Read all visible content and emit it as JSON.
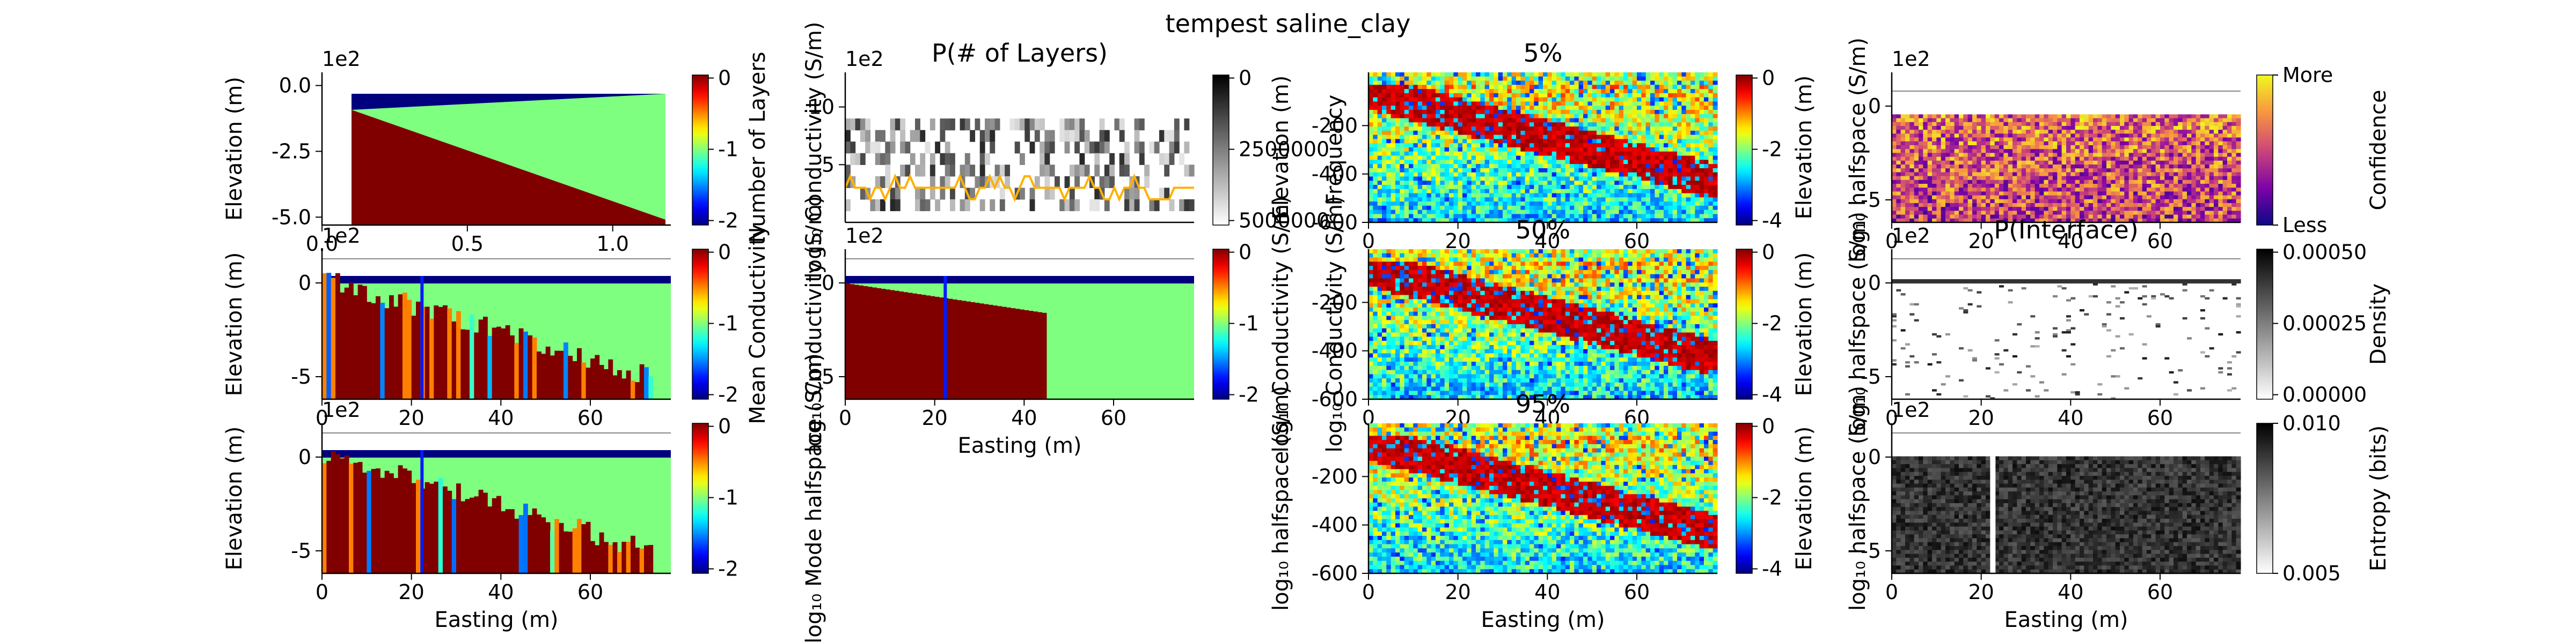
{
  "suptitle": "tempest saline_clay",
  "colors": {
    "clay": "#800000",
    "mid_green": "#7fff7f",
    "top_blue": "#00007f",
    "median_line": "#ffb000",
    "hline": "#888888"
  },
  "panels": [
    {
      "id": "true_model",
      "type": "heatmap",
      "title": "",
      "xlabel": "",
      "ylabel": "Elevation (m)",
      "offset": "1e2",
      "xticks": [
        "0.0",
        "0.5",
        "1.0"
      ],
      "yticks": [
        "0.0",
        "-2.5",
        "-5.0"
      ],
      "colorbar": {
        "label": "log$_{10}$ Conductivity ($\\frac{S}{m}$)",
        "ticks": [
          "0",
          "-1",
          "-2"
        ],
        "cmap": "jet"
      }
    },
    {
      "id": "n_layers",
      "type": "heatmap",
      "title": "P(# of Layers)",
      "xlabel": "",
      "ylabel": "Number of Layers",
      "offset": "1e2",
      "xticks": [],
      "yticks": [
        "5",
        "10"
      ],
      "colorbar": {
        "label": "Frequency",
        "ticks": [
          "0",
          "2500000",
          "5000000"
        ],
        "cmap": "gray_r"
      }
    },
    {
      "id": "p5",
      "type": "heatmap",
      "title": "5%",
      "xlabel": "",
      "ylabel": "Elevation (m)",
      "offset": "",
      "xticks": [
        "0",
        "20",
        "40",
        "60"
      ],
      "yticks": [
        "-200",
        "-400",
        "-600"
      ],
      "colorbar": {
        "label": "log$_{10}$ halfspace ($\\frac{S}{m}$)",
        "ticks": [
          "0",
          "-2",
          "-4"
        ],
        "cmap": "jet"
      }
    },
    {
      "id": "confidence",
      "type": "heatmap",
      "title": "",
      "xlabel": "",
      "ylabel": "Elevation (m)",
      "offset": "1e2",
      "xticks": [
        "0",
        "20",
        "40",
        "60"
      ],
      "yticks": [
        "0",
        "-5"
      ],
      "colorbar": {
        "label": "Confidence",
        "ticks": [
          "More",
          "Less"
        ],
        "cmap": "plasma"
      }
    },
    {
      "id": "mean_model",
      "type": "heatmap",
      "title": "",
      "xlabel": "",
      "ylabel": "Elevation (m)",
      "offset": "1e2",
      "xticks": [
        "0",
        "20",
        "40",
        "60"
      ],
      "yticks": [
        "0",
        "-5"
      ],
      "colorbar": {
        "label": "log$_{10}$ Conductivity ($\\frac{S}{m}$)",
        "ticks": [
          "0",
          "-1",
          "-2"
        ],
        "cmap": "jet"
      }
    },
    {
      "id": "mean_cond",
      "type": "heatmap",
      "title": "",
      "xlabel": "Easting (m)",
      "ylabel": "Mean Conductivity",
      "offset": "1e2",
      "xticks": [
        "0",
        "20",
        "40",
        "60"
      ],
      "yticks": [
        "0",
        "-5"
      ],
      "colorbar": {
        "label": "log$_{10}$ Conductivity ($\\frac{S}{m}$)",
        "ticks": [
          "0",
          "-1",
          "-2"
        ],
        "cmap": "jet"
      }
    },
    {
      "id": "p50",
      "type": "heatmap",
      "title": "50%",
      "xlabel": "",
      "ylabel": "log$_{10}$ Conductivity ($\\frac{S}{m}$)",
      "offset": "",
      "xticks": [
        "0",
        "20",
        "40",
        "60"
      ],
      "yticks": [
        "-200",
        "-400",
        "-600"
      ],
      "colorbar": {
        "label": "log$_{10}$ halfspace ($\\frac{S}{m}$)",
        "ticks": [
          "0",
          "-2",
          "-4"
        ],
        "cmap": "jet"
      }
    },
    {
      "id": "interface",
      "type": "heatmap",
      "title": "P(Interface)",
      "xlabel": "",
      "ylabel": "Elevation (m)",
      "offset": "1e2",
      "xticks": [
        "0",
        "20",
        "40",
        "60"
      ],
      "yticks": [
        "0",
        "-5"
      ],
      "colorbar": {
        "label": "Density",
        "ticks": [
          "0.00050",
          "0.00025",
          "0.00000"
        ],
        "cmap": "gray_r"
      }
    },
    {
      "id": "mode_model",
      "type": "heatmap",
      "title": "",
      "xlabel": "Easting (m)",
      "ylabel": "Elevation (m)",
      "offset": "1e2",
      "xticks": [
        "0",
        "20",
        "40",
        "60"
      ],
      "yticks": [
        "0",
        "-5"
      ],
      "colorbar": {
        "label": "log$_{10}$ Mode halfspace ($\\frac{S}{m}$)",
        "ticks": [
          "0",
          "-1",
          "-2"
        ],
        "cmap": "jet"
      }
    },
    {
      "id": "p95",
      "type": "heatmap",
      "title": "95%",
      "xlabel": "Easting (m)",
      "ylabel": "log$_{10}$ halfspace ($\\frac{S}{m}$)",
      "offset": "",
      "xticks": [
        "0",
        "20",
        "40",
        "60"
      ],
      "yticks": [
        "-200",
        "-400",
        "-600"
      ],
      "colorbar": {
        "label": "log$_{10}$ halfspace ($\\frac{S}{m}$)",
        "ticks": [
          "0",
          "-2",
          "-4"
        ],
        "cmap": "jet"
      }
    },
    {
      "id": "entropy",
      "type": "heatmap",
      "title": "",
      "xlabel": "Easting (m)",
      "ylabel": "Elevation (m)",
      "offset": "1e2",
      "xticks": [
        "0",
        "20",
        "40",
        "60"
      ],
      "yticks": [
        "0",
        "-5"
      ],
      "colorbar": {
        "label": "Entropy (bits)",
        "ticks": [
          "0.010",
          "0.005"
        ],
        "cmap": "gray_r"
      }
    }
  ],
  "chart_data": [
    {
      "type": "heatmap",
      "panel": "true_model",
      "ylabel": "Elevation (m)",
      "xticks": [
        0.0,
        0.5,
        1.0
      ],
      "yticks": [
        0.0,
        -2.5,
        -5.0
      ],
      "offset": "1e2",
      "xlim": [
        0,
        1.2
      ],
      "ylim": [
        -5.3,
        0.5
      ],
      "colorbar_range": [
        -2,
        0
      ],
      "description_layers": [
        {
          "name": "top",
          "value": -2
        },
        {
          "name": "middle",
          "value": -0.5
        },
        {
          "name": "bottom",
          "value": 0
        }
      ]
    },
    {
      "type": "heatmap",
      "panel": "n_layers",
      "title": "P(# of Layers)",
      "ylabel": "Number of Layers",
      "yticks": [
        5,
        10
      ],
      "ylim": [
        0,
        13
      ],
      "colorbar_range": [
        0,
        6000000
      ]
    },
    {
      "type": "heatmap",
      "panel": "p5",
      "title": "5%",
      "ylabel": "Elevation (m)",
      "yticks": [
        -200,
        -400,
        -600
      ],
      "xticks": [
        0,
        20,
        40,
        60
      ],
      "xlim": [
        0,
        78
      ],
      "ylim": [
        -600,
        20
      ],
      "colorbar_range": [
        -4.7,
        0.5
      ]
    },
    {
      "type": "heatmap",
      "panel": "confidence",
      "ylabel": "Elevation (m)",
      "offset": "1e2",
      "yticks": [
        0,
        -5
      ],
      "xticks": [
        0,
        20,
        40,
        60
      ]
    },
    {
      "type": "heatmap",
      "panel": "mean_model",
      "ylabel": "Elevation (m)",
      "offset": "1e2",
      "yticks": [
        0,
        -5
      ],
      "xticks": [
        0,
        20,
        40,
        60
      ],
      "colorbar_range": [
        -2,
        0
      ]
    },
    {
      "type": "heatmap",
      "panel": "mean_cond",
      "xlabel": "Easting (m)",
      "offset": "1e2",
      "yticks": [
        0,
        -5
      ],
      "xticks": [
        0,
        20,
        40,
        60
      ],
      "colorbar_range": [
        -2,
        0
      ]
    },
    {
      "type": "heatmap",
      "panel": "p50",
      "title": "50%",
      "yticks": [
        -200,
        -400,
        -600
      ],
      "xticks": [
        0,
        20,
        40,
        60
      ],
      "colorbar_range": [
        -4.7,
        0.5
      ]
    },
    {
      "type": "heatmap",
      "panel": "interface",
      "title": "P(Interface)",
      "ylabel": "Elevation (m)",
      "offset": "1e2",
      "yticks": [
        0,
        -5
      ],
      "xticks": [
        0,
        20,
        40,
        60
      ],
      "colorbar_range": [
        0,
        0.0007
      ]
    },
    {
      "type": "heatmap",
      "panel": "mode_model",
      "xlabel": "Easting (m)",
      "ylabel": "Elevation (m)",
      "offset": "1e2",
      "yticks": [
        0,
        -5
      ],
      "xticks": [
        0,
        20,
        40,
        60
      ],
      "colorbar_range": [
        -2,
        0
      ]
    },
    {
      "type": "heatmap",
      "panel": "p95",
      "title": "95%",
      "xlabel": "Easting (m)",
      "yticks": [
        -200,
        -400,
        -600
      ],
      "xticks": [
        0,
        20,
        40,
        60
      ],
      "colorbar_range": [
        -4.7,
        0.5
      ]
    },
    {
      "type": "heatmap",
      "panel": "entropy",
      "xlabel": "Easting (m)",
      "ylabel": "Elevation (m)",
      "offset": "1e2",
      "yticks": [
        0,
        -5
      ],
      "xticks": [
        0,
        20,
        40,
        60
      ],
      "colorbar_range": [
        0.001,
        0.011
      ]
    }
  ]
}
